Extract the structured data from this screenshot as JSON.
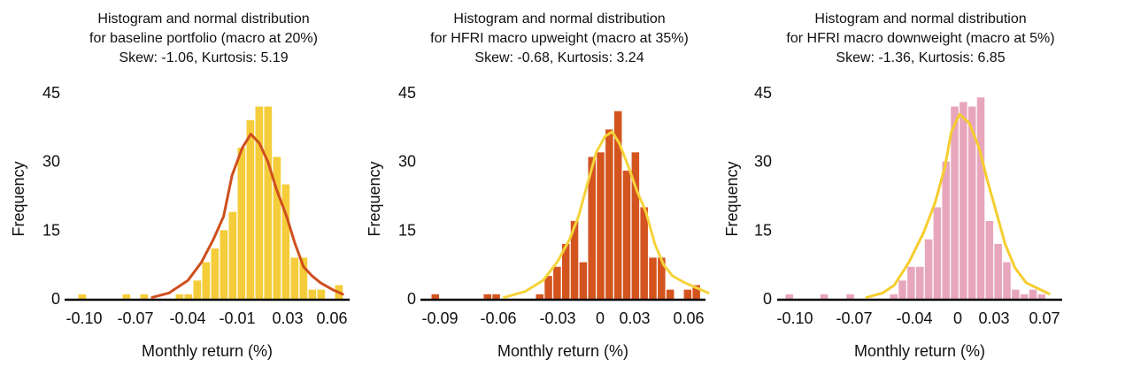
{
  "chart_data": [
    {
      "type": "bar",
      "title_lines": [
        "Histogram and normal distribution",
        "for baseline portfolio (macro at 20%)",
        "Skew: -1.06, Kurtosis: 5.19"
      ],
      "xlabel": "Monthly return (%)",
      "ylabel": "Frequency",
      "yticks": [
        "0",
        "15",
        "30",
        "45"
      ],
      "ylim": [
        0,
        45
      ],
      "xticks": [
        "-0.10",
        "-0.07",
        "-0.04",
        "-0.01",
        "0.03",
        "0.06"
      ],
      "bar_color": "#F5CD3A",
      "curve_color": "#CF4F1E",
      "bin_start": -0.1036,
      "bin_width": 0.0052,
      "counts": [
        1,
        0,
        0,
        0,
        0,
        1,
        0,
        1,
        0,
        0,
        0,
        1,
        1,
        4,
        8,
        11,
        15,
        19,
        33,
        39,
        42,
        42,
        31,
        25,
        9,
        9,
        2,
        2,
        0,
        3
      ],
      "fit_curve": [
        [
          -0.06,
          0.3
        ],
        [
          -0.05,
          1.3
        ],
        [
          -0.039,
          4
        ],
        [
          -0.031,
          8
        ],
        [
          -0.024,
          13
        ],
        [
          -0.018,
          18
        ],
        [
          -0.013,
          27
        ],
        [
          -0.007,
          33
        ],
        [
          -0.002,
          36
        ],
        [
          0.003,
          34
        ],
        [
          0.008,
          30
        ],
        [
          0.013,
          24
        ],
        [
          0.019,
          18
        ],
        [
          0.024,
          12
        ],
        [
          0.029,
          7
        ],
        [
          0.034,
          5
        ],
        [
          0.039,
          3.5
        ],
        [
          0.046,
          2
        ],
        [
          0.052,
          1
        ]
      ],
      "grid": false
    },
    {
      "type": "bar",
      "title_lines": [
        "Histogram and normal distribution",
        "for HFRI macro upweight (macro at 35%)",
        "Skew: -0.68, Kurtosis: 3.24"
      ],
      "xlabel": "Monthly return (%)",
      "ylabel": "Frequency",
      "yticks": [
        "0",
        "15",
        "30",
        "45"
      ],
      "ylim": [
        0,
        45
      ],
      "xticks": [
        "-0.09",
        "-0.06",
        "-0.03",
        "0",
        "0.03",
        "0.06"
      ],
      "bar_color": "#D4541F",
      "curve_color": "#F5D33A",
      "bin_start": -0.095,
      "bin_width": 0.0049,
      "counts": [
        1,
        0,
        0,
        0,
        0,
        0,
        1,
        1,
        0,
        0,
        0,
        0,
        1,
        5,
        7,
        12,
        17,
        8,
        31,
        32,
        37,
        41,
        28,
        32,
        20,
        9,
        9,
        2,
        0,
        2,
        3
      ],
      "fit_curve": [
        [
          -0.054,
          0.3
        ],
        [
          -0.042,
          1.6
        ],
        [
          -0.032,
          4
        ],
        [
          -0.024,
          8
        ],
        [
          -0.017,
          13
        ],
        [
          -0.012,
          18
        ],
        [
          -0.007,
          25
        ],
        [
          -0.002,
          32
        ],
        [
          0.003,
          35.5
        ],
        [
          0.007,
          36.5
        ],
        [
          0.011,
          34
        ],
        [
          0.016,
          29
        ],
        [
          0.021,
          23.5
        ],
        [
          0.026,
          19
        ],
        [
          0.031,
          12
        ],
        [
          0.036,
          7.4
        ],
        [
          0.041,
          5
        ],
        [
          0.048,
          3.5
        ],
        [
          0.061,
          1.3
        ]
      ],
      "grid": false
    },
    {
      "type": "bar",
      "title_lines": [
        "Histogram and normal distribution",
        "for HFRI macro downweight  (macro at 5%)",
        "Skew: -1.36, Kurtosis: 6.85"
      ],
      "xlabel": "Monthly return (%)",
      "ylabel": "Frequency",
      "yticks": [
        "0",
        "15",
        "30",
        "45"
      ],
      "ylim": [
        0,
        45
      ],
      "xticks": [
        "-0.10",
        "-0.07",
        "-0.04",
        "0",
        "0.03",
        "0.07"
      ],
      "bar_color": "#E8A6BD",
      "curve_color": "#F5CD2E",
      "bin_start": -0.106,
      "bin_width": 0.00534,
      "counts": [
        1,
        0,
        0,
        0,
        1,
        0,
        0,
        1,
        0,
        0,
        0,
        0,
        1,
        4,
        7,
        7,
        13,
        20,
        30,
        42,
        43,
        42,
        44,
        17,
        12,
        8,
        2,
        1,
        2,
        1
      ],
      "fit_curve": [
        [
          -0.056,
          0.3
        ],
        [
          -0.046,
          1.3
        ],
        [
          -0.039,
          3
        ],
        [
          -0.03,
          8
        ],
        [
          -0.021,
          14.5
        ],
        [
          -0.014,
          21
        ],
        [
          -0.008,
          28.7
        ],
        [
          -0.004,
          36.5
        ],
        [
          0.001,
          40.3
        ],
        [
          0.007,
          38.4
        ],
        [
          0.013,
          33
        ],
        [
          0.018,
          26
        ],
        [
          0.023,
          19.7
        ],
        [
          0.029,
          12
        ],
        [
          0.035,
          6.8
        ],
        [
          0.042,
          3.5
        ],
        [
          0.049,
          2.3
        ],
        [
          0.056,
          1.1
        ]
      ],
      "grid": false
    }
  ]
}
